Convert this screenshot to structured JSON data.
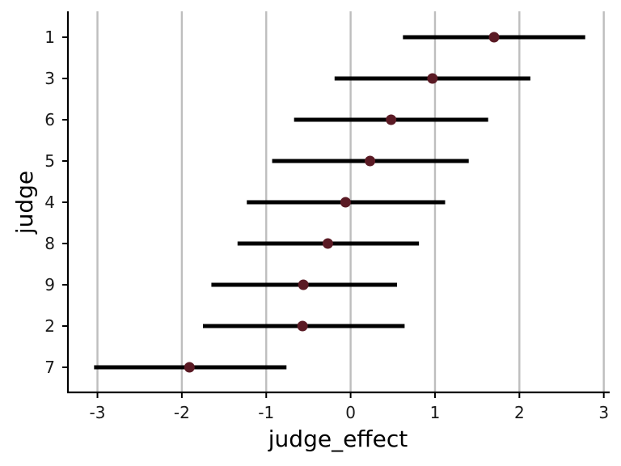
{
  "chart_data": {
    "type": "scatter",
    "xlabel": "judge_effect",
    "ylabel": "judge",
    "xlim": [
      -3.35,
      3.07
    ],
    "x_ticks": [
      "-3",
      "-2",
      "-1",
      "0",
      "1",
      "2",
      "3"
    ],
    "grid": "vertical major gridlines",
    "colors": {
      "point": "#5a1a24",
      "interval": "#000000",
      "grid": "#bebebe",
      "axis": "#000000"
    },
    "judges": [
      {
        "label": "1",
        "estimate": 1.7,
        "lower": 0.62,
        "upper": 2.78
      },
      {
        "label": "3",
        "estimate": 0.97,
        "lower": -0.19,
        "upper": 2.13
      },
      {
        "label": "6",
        "estimate": 0.48,
        "lower": -0.67,
        "upper": 1.63
      },
      {
        "label": "5",
        "estimate": 0.23,
        "lower": -0.93,
        "upper": 1.4
      },
      {
        "label": "4",
        "estimate": -0.06,
        "lower": -1.23,
        "upper": 1.12
      },
      {
        "label": "8",
        "estimate": -0.27,
        "lower": -1.34,
        "upper": 0.81
      },
      {
        "label": "9",
        "estimate": -0.56,
        "lower": -1.65,
        "upper": 0.55
      },
      {
        "label": "2",
        "estimate": -0.57,
        "lower": -1.75,
        "upper": 0.64
      },
      {
        "label": "7",
        "estimate": -1.91,
        "lower": -3.04,
        "upper": -0.76
      }
    ]
  }
}
